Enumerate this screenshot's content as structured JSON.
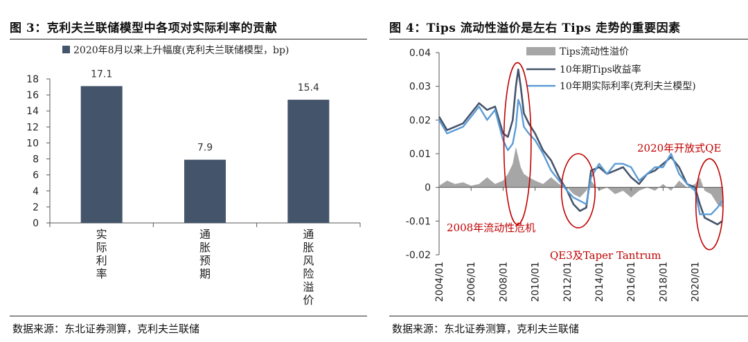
{
  "left": {
    "title": "图 3：克利夫兰联储模型中各项对实际利率的贡献",
    "source": "数据来源：东北证券测算，克利夫兰联储"
  },
  "right": {
    "title": "图 4：Tips 流动性溢价是左右 Tips 走势的重要因素",
    "source": "数据来源：东北证券测算，克利夫兰联储"
  },
  "colors": {
    "bar": "#44546a",
    "premium": "#a6a6a6",
    "tips": "#44546a",
    "real": "#5b9bd5",
    "annotation": "#c00000",
    "circle": "#c00000"
  },
  "chart_data": [
    {
      "type": "bar",
      "title": "图 3：克利夫兰联储模型中各项对实际利率的贡献",
      "legend": "2020年8月以来上升幅度(克利夫兰联储模型，bp)",
      "categories": [
        "实际利率",
        "通胀预期",
        "通胀风险溢价"
      ],
      "values": [
        17.1,
        7.9,
        15.4
      ],
      "value_labels": [
        "17.1",
        "7.9",
        "15.4"
      ],
      "ylim": [
        0,
        18
      ],
      "yticks": [
        "0",
        "2",
        "4",
        "6",
        "8",
        "10",
        "12",
        "14",
        "16",
        "18"
      ]
    },
    {
      "type": "line",
      "title": "图 4：Tips 流动性溢价是左右 Tips 走势的重要因素",
      "ylim": [
        -0.02,
        0.04
      ],
      "yticks": [
        "-0.02",
        "-0.01",
        "0",
        "0.01",
        "0.02",
        "0.03",
        "0.04"
      ],
      "xlim": [
        2004.0,
        2021.75
      ],
      "xticks": [
        "2004/01",
        "2006/01",
        "2008/01",
        "2010/01",
        "2012/01",
        "2014/01",
        "2016/01",
        "2018/01",
        "2020/01"
      ],
      "series": [
        {
          "name": "Tips流动性溢价",
          "kind": "area",
          "x": [
            2004.0,
            2004.5,
            2005.0,
            2005.5,
            2006.0,
            2006.5,
            2007.0,
            2007.5,
            2008.0,
            2008.3,
            2008.6,
            2008.8,
            2008.95,
            2009.1,
            2009.3,
            2009.6,
            2010.0,
            2010.5,
            2011.0,
            2011.5,
            2012.0,
            2012.4,
            2012.8,
            2013.2,
            2013.5,
            2014.0,
            2014.5,
            2015.0,
            2015.5,
            2016.0,
            2016.5,
            2017.0,
            2017.5,
            2018.0,
            2018.5,
            2019.0,
            2019.5,
            2020.0,
            2020.3,
            2020.6,
            2021.0,
            2021.4,
            2021.7
          ],
          "values": [
            0.0005,
            0.002,
            0.001,
            0.0015,
            0.0005,
            0.001,
            0.003,
            0.001,
            0.002,
            0.004,
            0.007,
            0.012,
            0.009,
            0.006,
            0.004,
            0.003,
            0.002,
            0.001,
            0.003,
            0.001,
            0.0,
            -0.002,
            -0.003,
            -0.001,
            0.002,
            -0.001,
            0.0,
            -0.002,
            -0.001,
            -0.003,
            -0.001,
            0.0,
            -0.001,
            0.001,
            -0.001,
            0.002,
            0.0,
            0.001,
            0.003,
            -0.001,
            -0.002,
            -0.005,
            -0.006
          ]
        },
        {
          "name": "10年期Tips收益率",
          "kind": "line",
          "x": [
            2004.0,
            2004.5,
            2005.0,
            2005.5,
            2006.0,
            2006.5,
            2007.0,
            2007.5,
            2008.0,
            2008.3,
            2008.6,
            2008.8,
            2008.95,
            2009.1,
            2009.3,
            2009.6,
            2010.0,
            2010.5,
            2011.0,
            2011.5,
            2012.0,
            2012.4,
            2012.8,
            2013.2,
            2013.5,
            2014.0,
            2014.5,
            2015.0,
            2015.5,
            2016.0,
            2016.5,
            2017.0,
            2017.5,
            2018.0,
            2018.5,
            2019.0,
            2019.5,
            2020.0,
            2020.3,
            2020.6,
            2021.0,
            2021.4,
            2021.7
          ],
          "values": [
            0.021,
            0.017,
            0.018,
            0.019,
            0.022,
            0.025,
            0.023,
            0.024,
            0.016,
            0.015,
            0.02,
            0.03,
            0.035,
            0.03,
            0.022,
            0.019,
            0.016,
            0.011,
            0.008,
            0.003,
            -0.001,
            -0.005,
            -0.007,
            -0.006,
            0.005,
            0.006,
            0.004,
            0.005,
            0.006,
            0.003,
            0.001,
            0.004,
            0.005,
            0.007,
            0.009,
            0.006,
            0.001,
            0.0,
            -0.005,
            -0.009,
            -0.01,
            -0.011,
            -0.01
          ]
        },
        {
          "name": "10年期实际利率(克利夫兰模型)",
          "kind": "line",
          "x": [
            2004.0,
            2004.5,
            2005.0,
            2005.5,
            2006.0,
            2006.5,
            2007.0,
            2007.5,
            2008.0,
            2008.3,
            2008.6,
            2008.8,
            2008.95,
            2009.1,
            2009.3,
            2009.6,
            2010.0,
            2010.5,
            2011.0,
            2011.5,
            2012.0,
            2012.4,
            2012.8,
            2013.2,
            2013.5,
            2014.0,
            2014.5,
            2015.0,
            2015.5,
            2016.0,
            2016.5,
            2017.0,
            2017.5,
            2018.0,
            2018.5,
            2019.0,
            2019.5,
            2020.0,
            2020.3,
            2020.6,
            2021.0,
            2021.4,
            2021.7
          ],
          "values": [
            0.02,
            0.016,
            0.017,
            0.018,
            0.021,
            0.024,
            0.02,
            0.023,
            0.014,
            0.011,
            0.013,
            0.018,
            0.026,
            0.024,
            0.018,
            0.016,
            0.014,
            0.01,
            0.005,
            0.002,
            -0.001,
            -0.003,
            -0.004,
            -0.005,
            0.003,
            0.007,
            0.004,
            0.007,
            0.007,
            0.006,
            0.002,
            0.004,
            0.006,
            0.006,
            0.01,
            0.004,
            0.001,
            -0.001,
            -0.008,
            -0.008,
            -0.008,
            -0.006,
            -0.004
          ]
        }
      ],
      "annotations": [
        {
          "label": "2008年流动性危机",
          "circle_x": 2008.9,
          "circle_y": 0.013,
          "rx_years": 0.85,
          "ry_value": 0.024
        },
        {
          "label": "QE3及Taper Tantrum",
          "circle_x": 2012.7,
          "circle_y": -0.001,
          "rx_years": 1.05,
          "ry_value": 0.011
        },
        {
          "label": "2020年开放式QE",
          "circle_x": 2020.9,
          "circle_y": -0.005,
          "rx_years": 0.85,
          "ry_value": 0.0135
        }
      ]
    }
  ]
}
